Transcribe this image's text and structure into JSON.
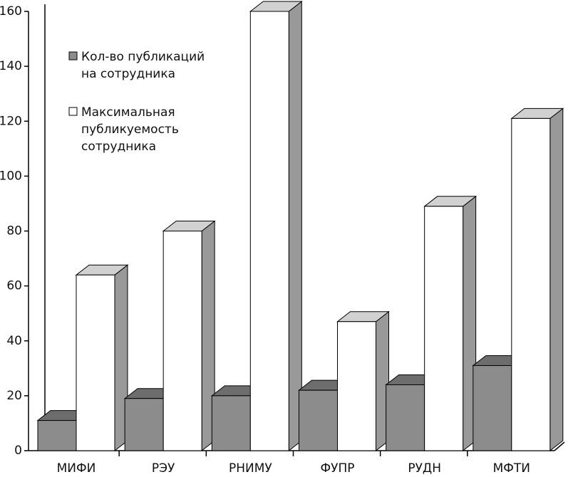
{
  "chart_data": {
    "type": "bar3d",
    "categories": [
      "МИФИ",
      "РЭУ",
      "РНИМУ",
      "ФУПР",
      "РУДН",
      "МФТИ"
    ],
    "series": [
      {
        "name": "Кол-во публикаций на сотрудника",
        "color": "#8c8c8c",
        "values": [
          11,
          19,
          20,
          22,
          24,
          31
        ]
      },
      {
        "name": "Максимальная публикуемость сотрудника",
        "color": "#ffffff",
        "values": [
          64,
          80,
          160,
          47,
          89,
          121
        ]
      }
    ],
    "ylim": [
      0,
      160
    ],
    "yticks": [
      0,
      20,
      40,
      60,
      80,
      100,
      120,
      140,
      160
    ],
    "grid": false
  }
}
